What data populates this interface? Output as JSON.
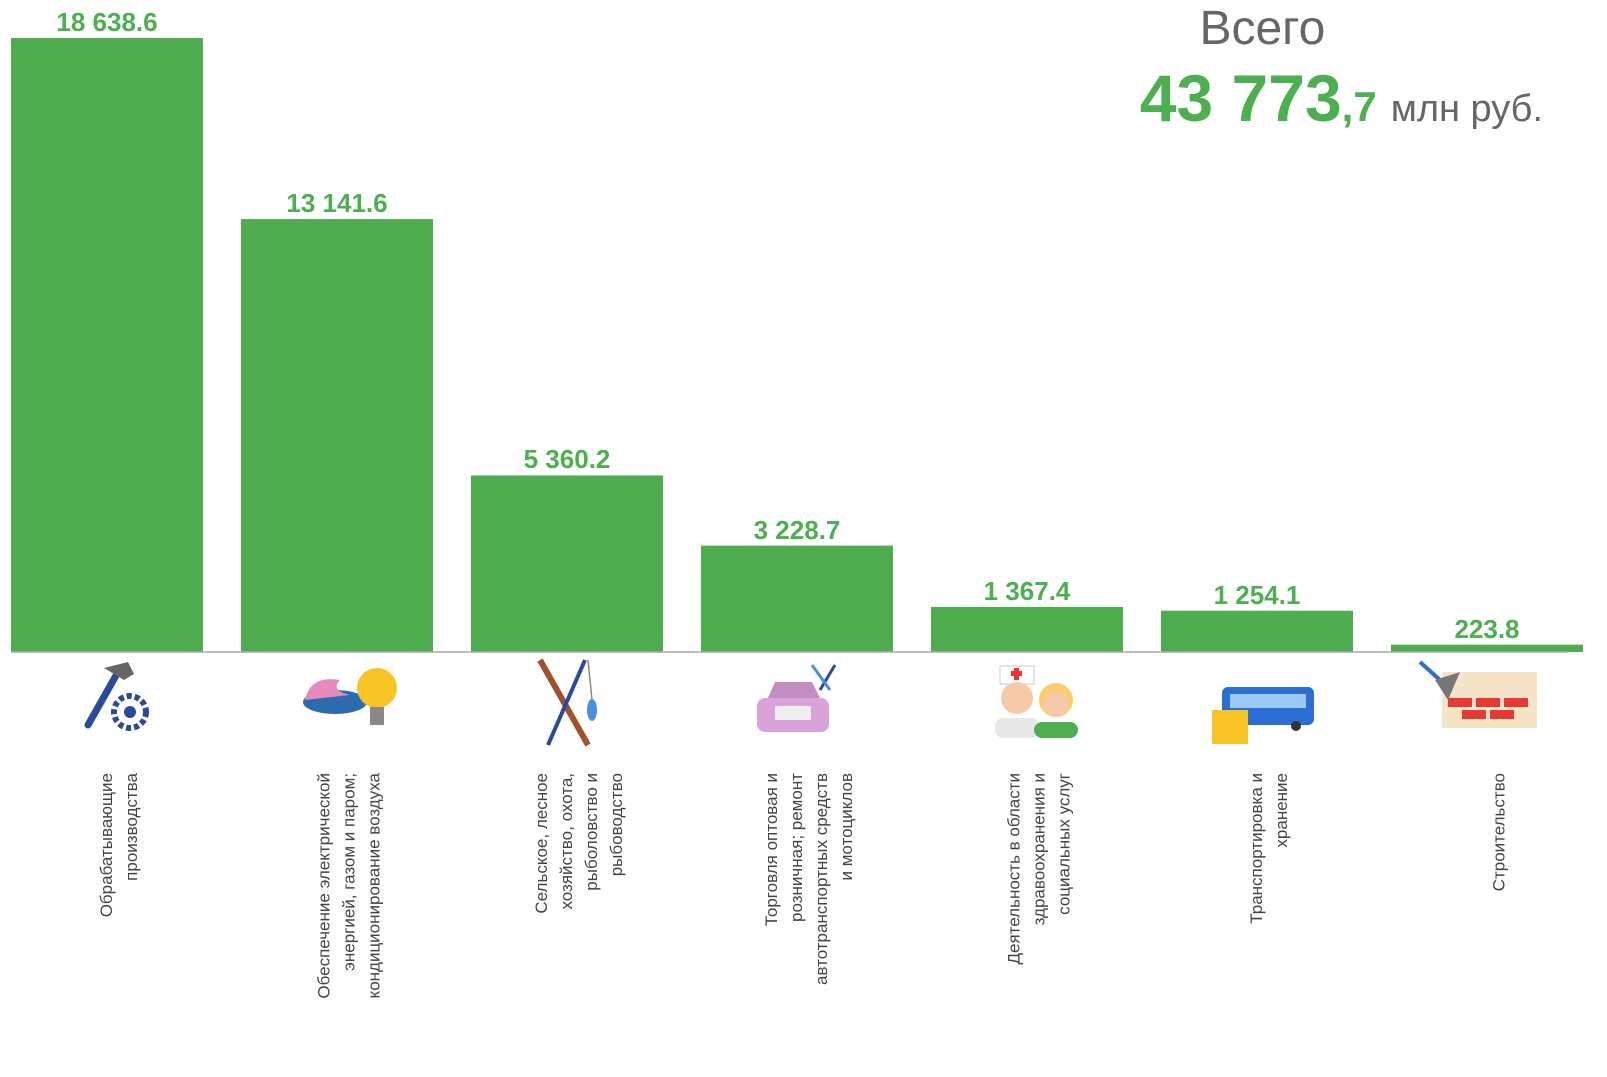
{
  "chart_data": {
    "type": "bar",
    "categories": [
      "Обрабатывающие\nпроизводства",
      "Обеспечение электрической\nэнергией, газом и паром;\nкондиционирование воздуха",
      "Сельское, лесное\nхозяйство, охота,\nрыболовство и\nрыбоводство",
      "Торговля оптовая и\nрозничная; ремонт\nавтотранспортных средств\nи мотоциклов",
      "Деятельность в области\nздравоохранения и\nсоциальных услуг",
      "Транспортировка и\nхранение",
      "Строительство"
    ],
    "values": [
      18638.6,
      13141.6,
      5360.2,
      3228.7,
      1367.4,
      1254.1,
      223.8
    ],
    "value_labels": [
      "18 638.6",
      "13 141.6",
      "5 360.2",
      "3 228.7",
      "1 367.4",
      "1 254.1",
      "223.8"
    ],
    "color": "#4fad50",
    "total_label": "Всего",
    "total_value_main": "43 773",
    "total_value_decimal": ",7",
    "total_unit": "млн руб."
  }
}
